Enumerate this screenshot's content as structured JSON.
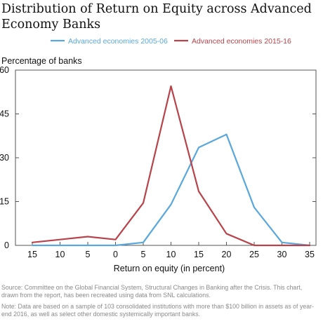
{
  "header": {
    "title": "Distribution of Return on Equity across Advanced Economy Banks"
  },
  "chart_data": {
    "type": "line",
    "title": "Distribution of Return on Equity across Advanced Economy Banks",
    "ylabel": "Percentage of banks",
    "xlabel": "Return on equity (in percent)",
    "x_tick_labels": [
      "15",
      "10",
      "5",
      "0",
      "5",
      "10",
      "15",
      "20",
      "25",
      "30",
      "35"
    ],
    "y_tick_labels": [
      "0",
      "15",
      "30",
      "45",
      "60"
    ],
    "ylim": [
      0,
      60
    ],
    "y_ticks": [
      0,
      15,
      30,
      45,
      60
    ],
    "grid": false,
    "legend_position": "top-center",
    "series": [
      {
        "name": "Advanced economies 2005-06",
        "color": "#5aa7de",
        "values": [
          0,
          0,
          0,
          0,
          1,
          14,
          33.5,
          38,
          13,
          1,
          0
        ]
      },
      {
        "name": "Advanced economies 2015-16",
        "color": "#b8434a",
        "values": [
          1,
          2,
          3,
          2,
          14.5,
          54.5,
          18.5,
          4,
          0,
          0,
          0
        ]
      }
    ]
  },
  "footer": {
    "source": "Source: Committee on the Global Financial System, Structural Changes in Banking after the Crisis. This chart, drawn from the report, has been recreated using data from SNL calculations.",
    "note": "Note: Data are based on a sample of 103 consolidated institutions with more than $100 billion in assets as of year-end 2016, as well as select other domestic systemically important banks."
  }
}
